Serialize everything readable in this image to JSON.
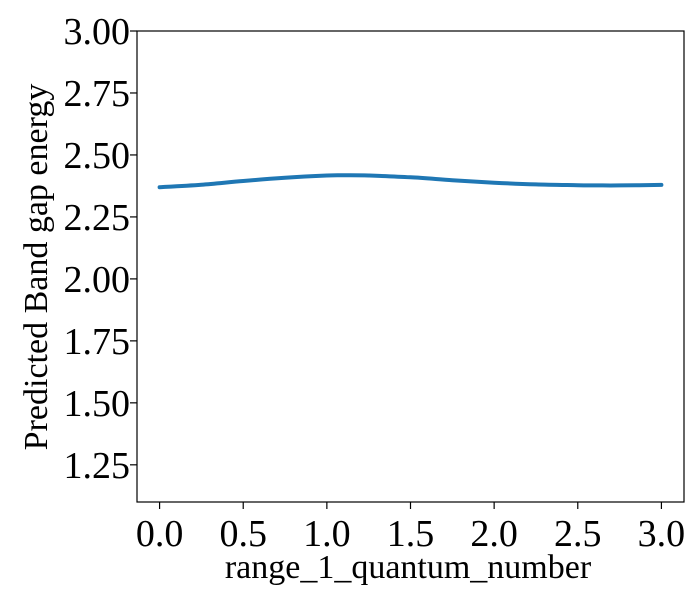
{
  "chart_data": {
    "type": "line",
    "title": "",
    "xlabel": "range_1_quantum_number",
    "ylabel": "Predicted Band gap energy",
    "xlim": [
      -0.135,
      3.135
    ],
    "ylim": [
      1.1,
      3.0
    ],
    "xticks": [
      0.0,
      0.5,
      1.0,
      1.5,
      2.0,
      2.5,
      3.0
    ],
    "xtick_labels": [
      "0.0",
      "0.5",
      "1.0",
      "1.5",
      "2.0",
      "2.5",
      "3.0"
    ],
    "yticks": [
      1.25,
      1.5,
      1.75,
      2.0,
      2.25,
      2.5,
      2.75,
      3.0
    ],
    "ytick_labels": [
      "1.25",
      "1.50",
      "1.75",
      "2.00",
      "2.25",
      "2.50",
      "2.75",
      "3.00"
    ],
    "grid": false,
    "legend": "none",
    "series": [
      {
        "color": "#1f77b4",
        "x": [
          0.0,
          0.25,
          0.5,
          0.75,
          1.0,
          1.1,
          1.25,
          1.5,
          1.75,
          2.0,
          2.25,
          2.5,
          2.65,
          2.75,
          3.0
        ],
        "y": [
          2.37,
          2.38,
          2.395,
          2.408,
          2.417,
          2.418,
          2.417,
          2.41,
          2.398,
          2.388,
          2.381,
          2.378,
          2.377,
          2.377,
          2.379
        ]
      }
    ]
  }
}
